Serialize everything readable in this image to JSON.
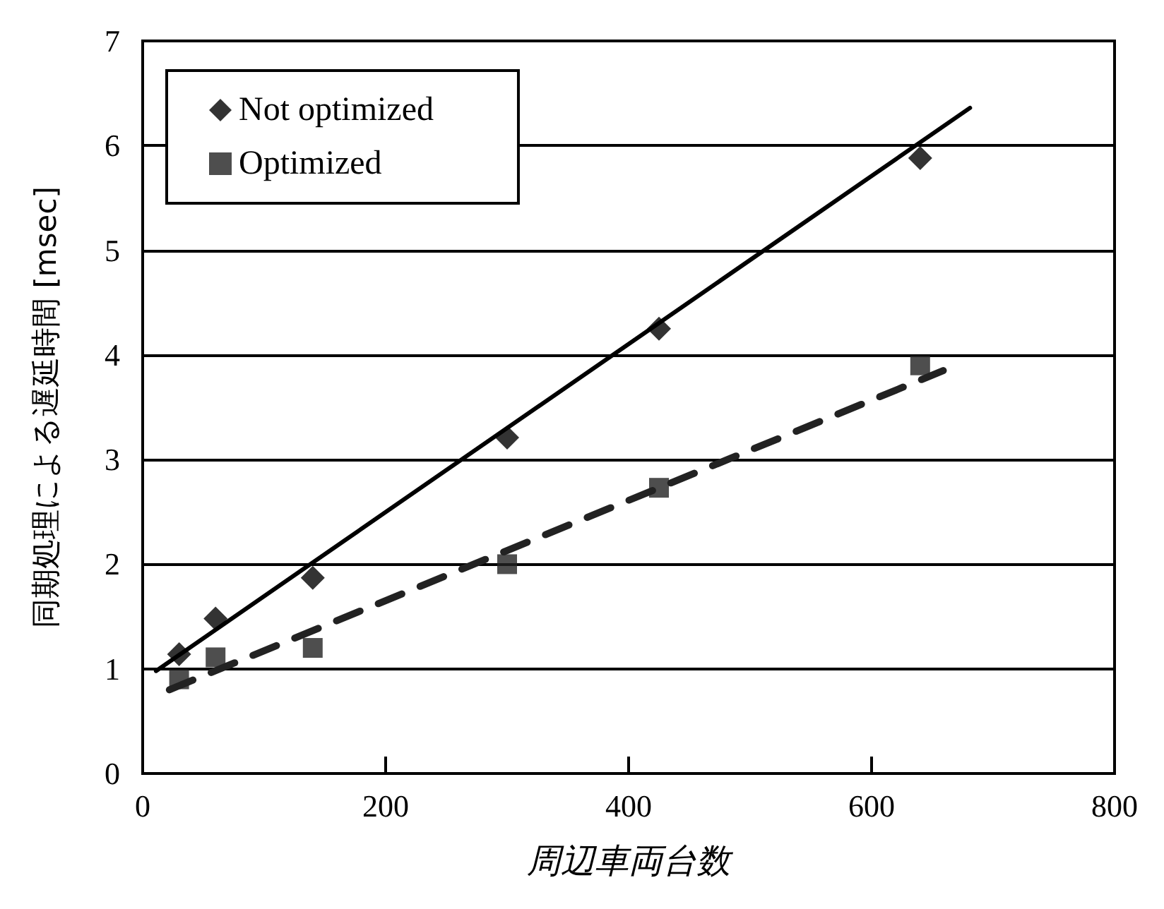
{
  "chart_data": {
    "type": "scatter",
    "xlabel": "周辺車両台数",
    "ylabel": "同期処理による遅延時間 [msec]",
    "xlim": [
      0,
      800
    ],
    "xticks": [
      0,
      200,
      400,
      600,
      800
    ],
    "ylim": [
      0,
      7
    ],
    "yticks": [
      0,
      1,
      2,
      3,
      4,
      5,
      6,
      7
    ],
    "grid": "y",
    "legend": "top left",
    "series": [
      {
        "name": "Not optimized",
        "color": "#000000",
        "marker": "diamond",
        "x": [
          30,
          60,
          140,
          300,
          425,
          640
        ],
        "values": [
          1.14,
          1.48,
          1.87,
          3.21,
          4.25,
          5.88
        ]
      },
      {
        "name": "Optimized",
        "color": "#222222",
        "marker": "square",
        "x": [
          30,
          60,
          140,
          300,
          425,
          640
        ],
        "values": [
          0.9,
          1.11,
          1.2,
          2.0,
          2.73,
          3.9
        ]
      },
      {
        "type": "line",
        "color": "#000000",
        "line_style": "solid",
        "marker": "none",
        "x": [
          11,
          681
        ],
        "values": [
          0.98,
          6.36
        ]
      },
      {
        "type": "line",
        "color": "#222222",
        "line_style": "dashed",
        "marker": "none",
        "x": [
          22,
          659
        ],
        "values": [
          0.8,
          3.85
        ]
      }
    ]
  }
}
